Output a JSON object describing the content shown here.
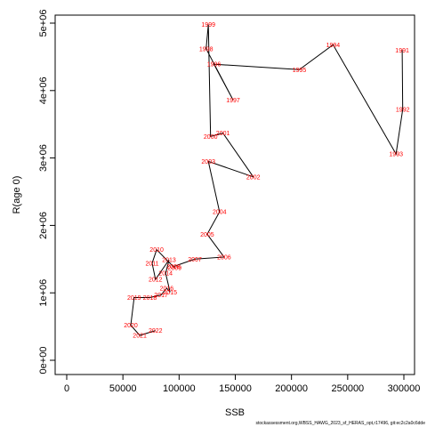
{
  "chart_data": {
    "type": "line",
    "xlabel": "SSB",
    "ylabel": "R(age 0)",
    "xlim": [
      0,
      300000
    ],
    "ylim": [
      0,
      5000000
    ],
    "x_ticks": [
      0,
      50000,
      100000,
      150000,
      200000,
      250000,
      300000
    ],
    "x_tick_labels": [
      "0",
      "50000",
      "100000",
      "150000",
      "200000",
      "250000",
      "300000"
    ],
    "y_ticks": [
      0,
      1000000,
      2000000,
      3000000,
      4000000,
      5000000
    ],
    "y_tick_labels": [
      "0e+00",
      "1e+06",
      "2e+06",
      "3e+06",
      "4e+06",
      "5e+06"
    ],
    "line_color": "#000000",
    "label_color": "#ff0000",
    "points": [
      {
        "year": "1991",
        "ssb": 298500,
        "rec": 4600000
      },
      {
        "year": "1992",
        "ssb": 299000,
        "rec": 3720000
      },
      {
        "year": "1993",
        "ssb": 293000,
        "rec": 3060000
      },
      {
        "year": "1994",
        "ssb": 237000,
        "rec": 4680000
      },
      {
        "year": "1995",
        "ssb": 207000,
        "rec": 4310000
      },
      {
        "year": "1996",
        "ssb": 131000,
        "rec": 4390000
      },
      {
        "year": "1997",
        "ssb": 148000,
        "rec": 3860000
      },
      {
        "year": "1998",
        "ssb": 124000,
        "rec": 4620000
      },
      {
        "year": "1999",
        "ssb": 126000,
        "rec": 4980000
      },
      {
        "year": "2000",
        "ssb": 128000,
        "rec": 3320000
      },
      {
        "year": "2001",
        "ssb": 139000,
        "rec": 3370000
      },
      {
        "year": "2002",
        "ssb": 166000,
        "rec": 2720000
      },
      {
        "year": "2003",
        "ssb": 126000,
        "rec": 2950000
      },
      {
        "year": "2004",
        "ssb": 136000,
        "rec": 2200000
      },
      {
        "year": "2005",
        "ssb": 125000,
        "rec": 1870000
      },
      {
        "year": "2006",
        "ssb": 140000,
        "rec": 1530000
      },
      {
        "year": "2007",
        "ssb": 114000,
        "rec": 1500000
      },
      {
        "year": "2008",
        "ssb": 95000,
        "rec": 1390000
      },
      {
        "year": "2009",
        "ssb": 96000,
        "rec": 1370000
      },
      {
        "year": "2010",
        "ssb": 80000,
        "rec": 1640000
      },
      {
        "year": "2011",
        "ssb": 76000,
        "rec": 1440000
      },
      {
        "year": "2012",
        "ssb": 79000,
        "rec": 1200000
      },
      {
        "year": "2013",
        "ssb": 91000,
        "rec": 1490000
      },
      {
        "year": "2014",
        "ssb": 88000,
        "rec": 1290000
      },
      {
        "year": "2015",
        "ssb": 92000,
        "rec": 1010000
      },
      {
        "year": "2016",
        "ssb": 89000,
        "rec": 1070000
      },
      {
        "year": "2017",
        "ssb": 84000,
        "rec": 970000
      },
      {
        "year": "2018",
        "ssb": 74000,
        "rec": 930000
      },
      {
        "year": "2019",
        "ssb": 60000,
        "rec": 930000
      },
      {
        "year": "2020",
        "ssb": 57000,
        "rec": 520000
      },
      {
        "year": "2021",
        "ssb": 65000,
        "rec": 370000
      },
      {
        "year": "2022",
        "ssb": 79000,
        "rec": 440000
      }
    ]
  },
  "footnote": "stockassessment.org,WBSS_HAWG_2023_sf_HERAS_opt,r17496, git:ec2c2a0c6dde"
}
